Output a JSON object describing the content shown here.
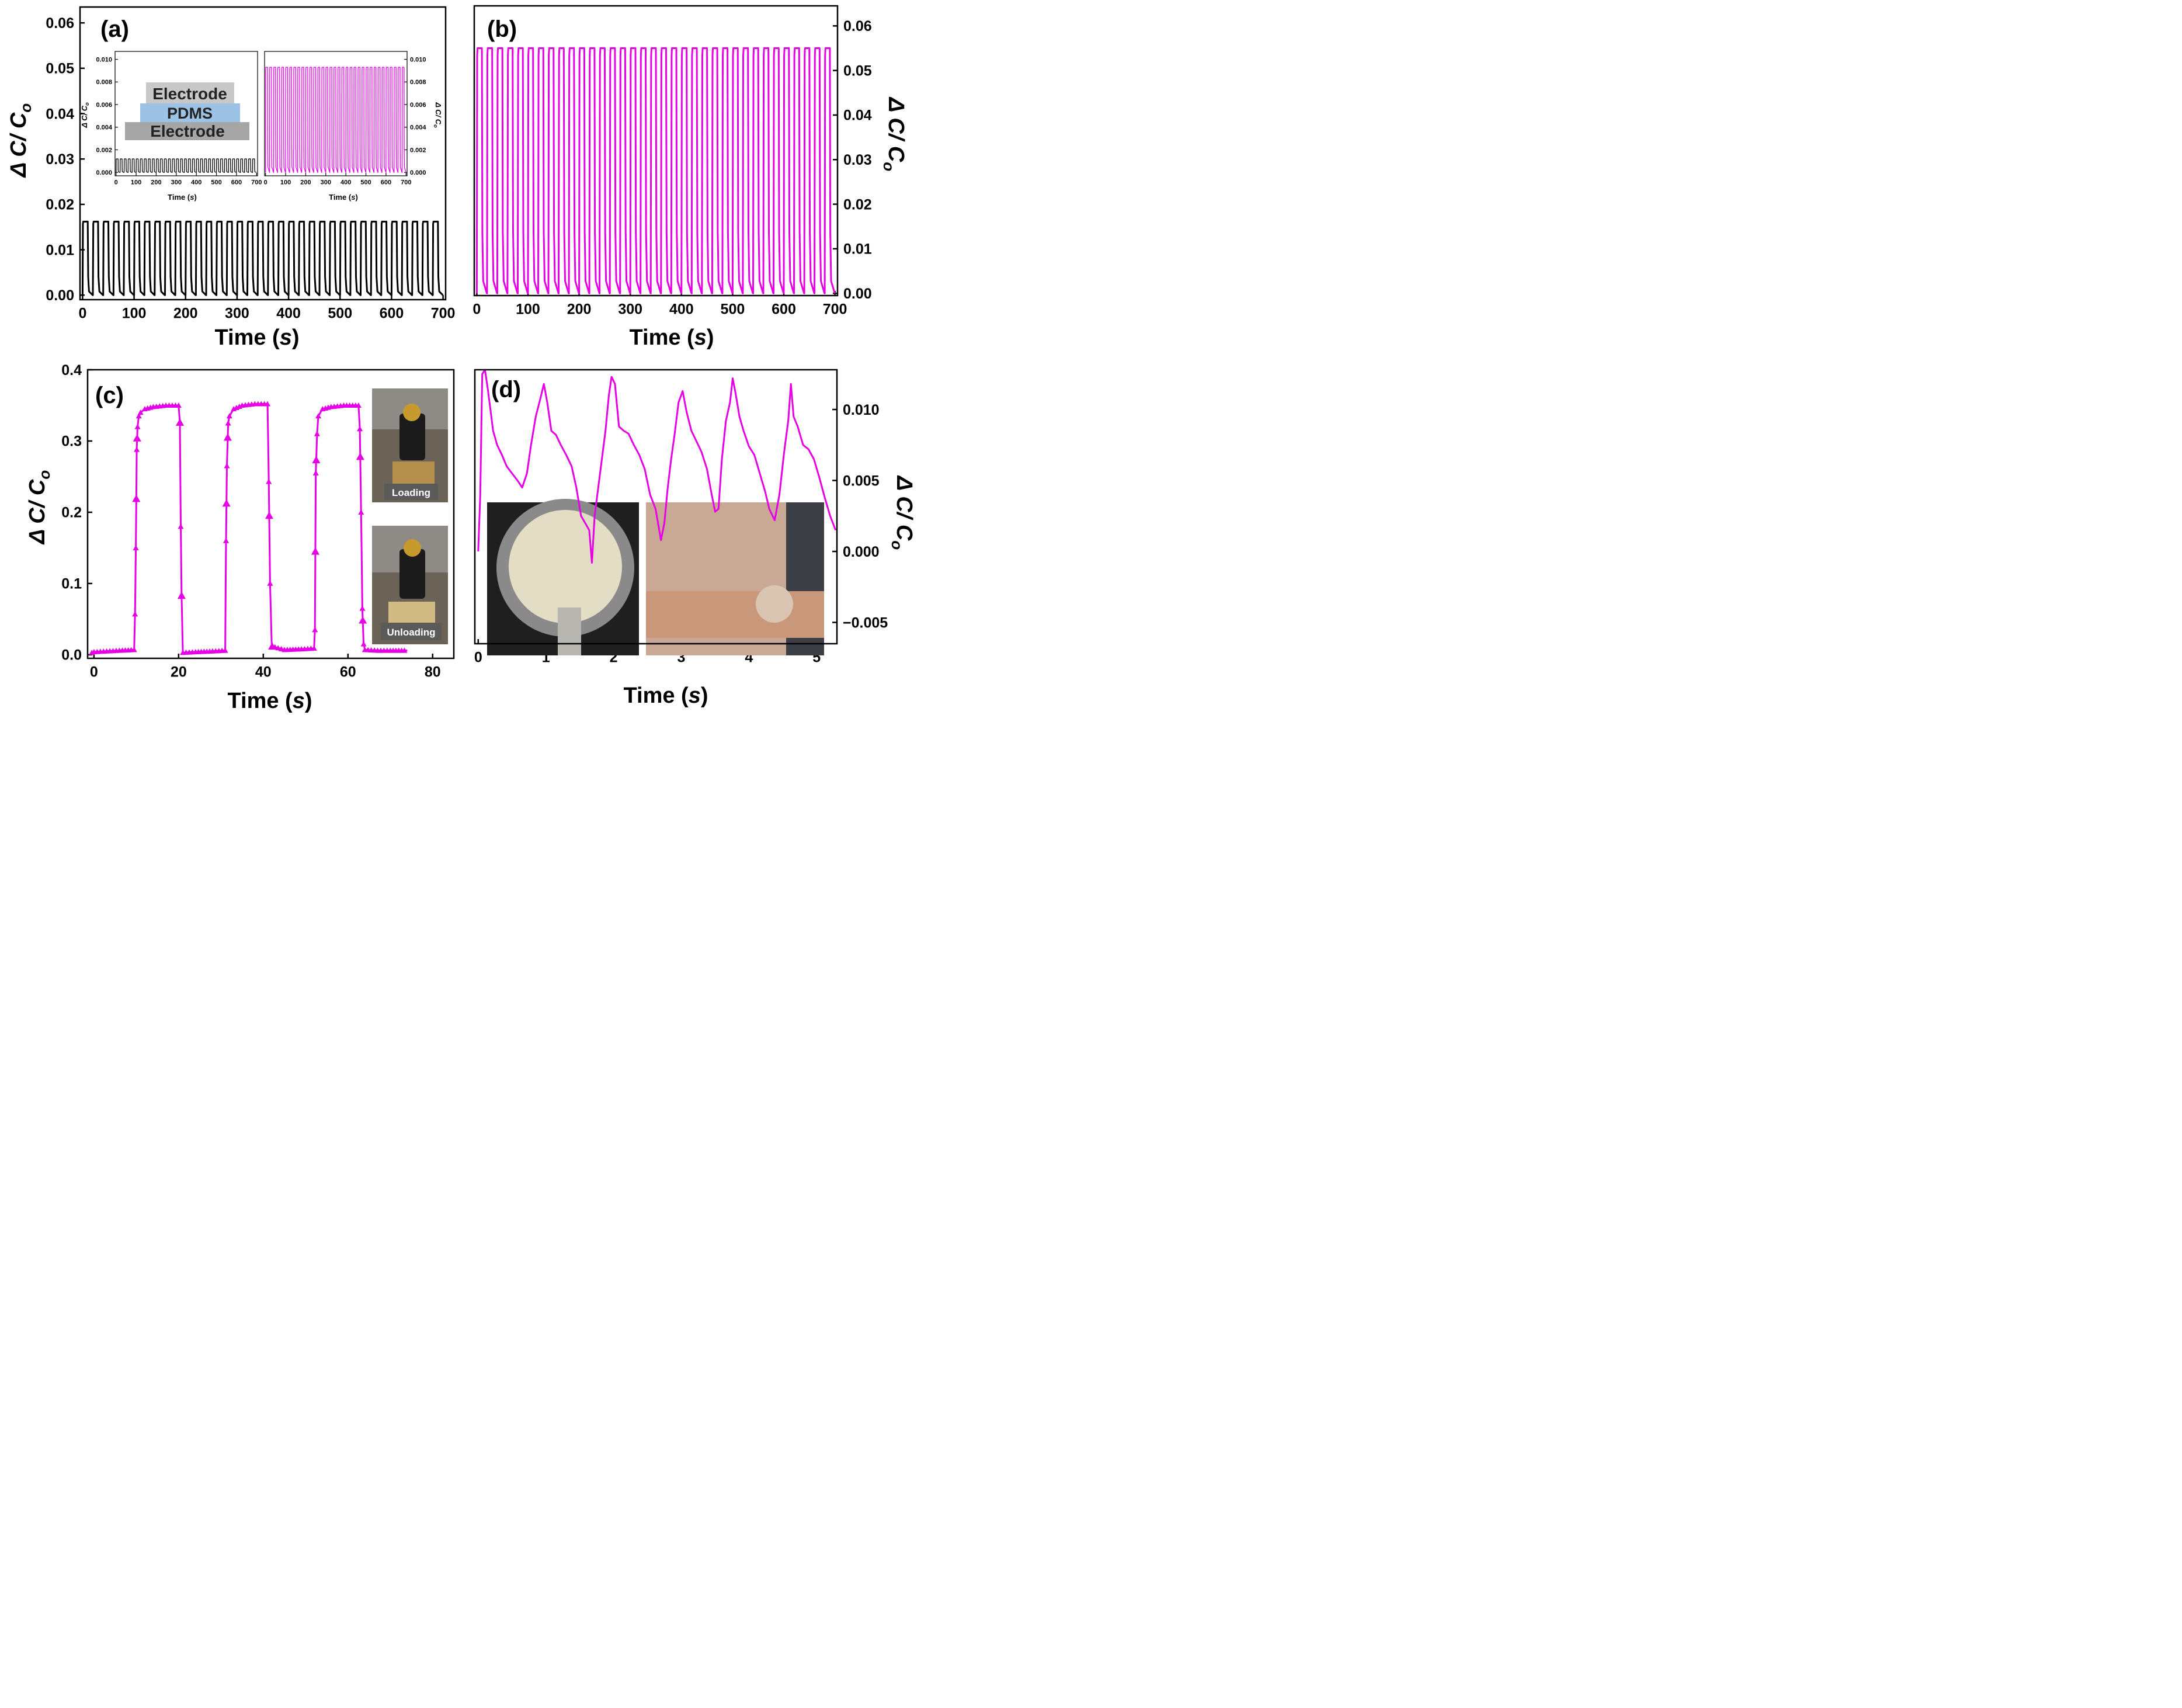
{
  "figure": {
    "panel_labels": {
      "a": "(a)",
      "b": "(b)",
      "c": "(c)",
      "d": "(d)"
    },
    "schematic": {
      "top_layer": "Electrode",
      "middle_layer": "PDMS",
      "bottom_layer": "Electrode"
    },
    "photo_labels": {
      "loading": "Loading",
      "unloading": "Unloading"
    },
    "photo_names": {
      "c_top": "minifigure-on-sensor-loading-photo",
      "c_bottom": "minifigure-on-sensor-unloading-photo",
      "d_left": "circular-sensor-photo",
      "d_right": "sensor-on-wrist-photo"
    }
  },
  "chart_data": [
    {
      "id": "a",
      "type": "line",
      "title": "",
      "xlabel": "Time",
      "xunit": "s",
      "ylabel": "Δ C/ C",
      "ylabel_sub": "o",
      "xlim": [
        -5,
        705
      ],
      "ylim": [
        -0.001,
        0.0635
      ],
      "xticks": [
        0,
        100,
        200,
        300,
        400,
        500,
        600,
        700
      ],
      "yticks": [
        0.0,
        0.01,
        0.02,
        0.03,
        0.04,
        0.05,
        0.06
      ],
      "ytick_decimals": 2,
      "axis_side": "left",
      "color": "#000000",
      "series": [
        {
          "name": "response",
          "kind": "square",
          "cycles": 35,
          "period": 20,
          "start": 0,
          "end": 705,
          "low": 0.0,
          "high": 0.0162,
          "rise": 0.7,
          "fall": 2.5
        }
      ]
    },
    {
      "id": "a_inset_1",
      "type": "line",
      "xlabel": "Time",
      "xunit": "s",
      "ylabel": "Δ C/ C",
      "ylabel_sub": "o",
      "xlim": [
        -5,
        705
      ],
      "ylim": [
        -0.0003,
        0.0107
      ],
      "xticks": [
        0,
        100,
        200,
        300,
        400,
        500,
        600,
        700
      ],
      "yticks": [
        0.0,
        0.002,
        0.004,
        0.006,
        0.008,
        0.01
      ],
      "ytick_decimals": 3,
      "axis_side": "left",
      "color": "#000000",
      "series": [
        {
          "name": "inset response",
          "kind": "square",
          "cycles": 35,
          "period": 20,
          "start": 0,
          "end": 705,
          "low": 0.0,
          "high": 0.0012,
          "rise": 0.6,
          "fall": 1.5
        }
      ]
    },
    {
      "id": "a_inset_2",
      "type": "line",
      "xlabel": "Time",
      "xunit": "s",
      "ylabel": "Δ C/ C",
      "ylabel_sub": "o",
      "xlim": [
        -5,
        705
      ],
      "ylim": [
        -0.0003,
        0.0107
      ],
      "xticks": [
        0,
        100,
        200,
        300,
        400,
        500,
        600,
        700
      ],
      "yticks": [
        0.0,
        0.002,
        0.004,
        0.006,
        0.008,
        0.01
      ],
      "ytick_decimals": 3,
      "axis_side": "right",
      "color": "#e600e6",
      "series": [
        {
          "name": "inset response",
          "kind": "square",
          "cycles": 35,
          "period": 20,
          "start": 0,
          "end": 705,
          "low": 0.0,
          "high": 0.0093,
          "rise": 0.6,
          "fall": 1.5
        }
      ]
    },
    {
      "id": "b",
      "type": "line",
      "xlabel": "Time",
      "xunit": "s",
      "ylabel": "Δ C/ C",
      "ylabel_sub": "o",
      "xlim": [
        -5,
        705
      ],
      "ylim": [
        -0.0005,
        0.0645
      ],
      "xticks": [
        0,
        100,
        200,
        300,
        400,
        500,
        600,
        700
      ],
      "yticks": [
        0.0,
        0.01,
        0.02,
        0.03,
        0.04,
        0.05,
        0.06
      ],
      "ytick_decimals": 2,
      "axis_side": "right",
      "color": "#e600e6",
      "series": [
        {
          "name": "response",
          "kind": "square",
          "cycles": 35,
          "period": 20,
          "start": 0,
          "end": 705,
          "low": 0.0,
          "high": 0.055,
          "rise": 0.7,
          "fall": 2.5
        }
      ]
    },
    {
      "id": "c",
      "type": "line",
      "xlabel": "Time",
      "xunit": "s",
      "ylabel": "Δ C/ C",
      "ylabel_sub": "o",
      "xlim": [
        -1.5,
        85
      ],
      "ylim": [
        -0.005,
        0.4
      ],
      "xticks": [
        0,
        20,
        40,
        60,
        80
      ],
      "yticks": [
        0.0,
        0.1,
        0.2,
        0.3,
        0.4
      ],
      "ytick_decimals": 1,
      "axis_side": "left",
      "color": "#e600e6",
      "marker": "triangle",
      "series": [
        {
          "name": "loading/unloading",
          "x": [
            -0.5,
            0,
            3,
            6,
            9.5,
            9.7,
            9.9,
            10.1,
            10.3,
            10.6,
            11,
            12,
            14,
            17,
            20,
            20.3,
            20.5,
            20.7,
            21,
            24,
            28,
            31,
            31.2,
            31.4,
            31.7,
            32,
            33,
            35,
            38,
            41,
            41.3,
            41.6,
            42,
            45,
            49,
            52,
            52.2,
            52.4,
            52.7,
            53,
            54,
            56,
            59,
            62.5,
            62.8,
            63.1,
            63.4,
            63.7,
            64,
            67,
            70,
            74
          ],
          "y": [
            0.003,
            0.004,
            0.005,
            0.006,
            0.007,
            0.057,
            0.15,
            0.288,
            0.32,
            0.335,
            0.34,
            0.345,
            0.348,
            0.35,
            0.35,
            0.326,
            0.18,
            0.083,
            0.003,
            0.004,
            0.005,
            0.006,
            0.16,
            0.265,
            0.325,
            0.335,
            0.345,
            0.35,
            0.352,
            0.352,
            0.243,
            0.1,
            0.012,
            0.007,
            0.008,
            0.009,
            0.035,
            0.255,
            0.31,
            0.335,
            0.345,
            0.348,
            0.35,
            0.35,
            0.317,
            0.2,
            0.065,
            0.015,
            0.007,
            0.006,
            0.006,
            0.006
          ],
          "markers_x": [
            10.0,
            10.2,
            20.3,
            20.7,
            31.3,
            31.6,
            41.4,
            42.1,
            52.3,
            52.5,
            62.9,
            63.5
          ]
        }
      ]
    },
    {
      "id": "d",
      "type": "line",
      "xlabel": "Time",
      "xunit": "s",
      "ylabel": "Δ C/ C",
      "ylabel_sub": "o",
      "xlim": [
        -0.05,
        5.3
      ],
      "ylim": [
        -0.0065,
        0.0128
      ],
      "xticks": [
        0,
        1,
        2,
        3,
        4,
        5
      ],
      "yticks": [
        -0.005,
        0.0,
        0.005,
        0.01
      ],
      "ytick_labels": [
        "−0.005",
        "0.000",
        "0.005",
        "0.010"
      ],
      "axis_side": "right",
      "color": "#e600e6",
      "series": [
        {
          "name": "pulse",
          "x": [
            0,
            0.03,
            0.06,
            0.1,
            0.14,
            0.18,
            0.22,
            0.28,
            0.35,
            0.42,
            0.5,
            0.58,
            0.65,
            0.72,
            0.78,
            0.85,
            0.92,
            0.97,
            1.02,
            1.08,
            1.15,
            1.22,
            1.3,
            1.38,
            1.45,
            1.52,
            1.58,
            1.64,
            1.68,
            1.72,
            1.8,
            1.88,
            1.93,
            1.97,
            2.02,
            2.08,
            2.15,
            2.22,
            2.3,
            2.38,
            2.46,
            2.54,
            2.62,
            2.7,
            2.75,
            2.8,
            2.85,
            2.9,
            2.96,
            3.02,
            3.08,
            3.15,
            3.22,
            3.3,
            3.38,
            3.45,
            3.5,
            3.55,
            3.6,
            3.66,
            3.72,
            3.76,
            3.8,
            3.86,
            3.92,
            4.0,
            4.08,
            4.16,
            4.24,
            4.3,
            4.38,
            4.45,
            4.52,
            4.58,
            4.62,
            4.66,
            4.72,
            4.8,
            4.88,
            4.96,
            5.04,
            5.12,
            5.2,
            5.28
          ],
          "y": [
            0.0,
            0.004,
            0.0125,
            0.0128,
            0.0115,
            0.01,
            0.0085,
            0.0075,
            0.0068,
            0.006,
            0.0055,
            0.005,
            0.0045,
            0.0055,
            0.0075,
            0.0095,
            0.0108,
            0.0118,
            0.0105,
            0.0085,
            0.0082,
            0.0075,
            0.0068,
            0.006,
            0.0045,
            0.0025,
            0.002,
            0.0015,
            -0.0008,
            0.0025,
            0.0055,
            0.0085,
            0.011,
            0.0123,
            0.0118,
            0.0088,
            0.0085,
            0.0083,
            0.0075,
            0.0068,
            0.0058,
            0.004,
            0.003,
            0.0008,
            0.002,
            0.0045,
            0.0065,
            0.0082,
            0.0105,
            0.0113,
            0.0098,
            0.0085,
            0.0078,
            0.007,
            0.0058,
            0.004,
            0.0028,
            0.003,
            0.0065,
            0.0092,
            0.0105,
            0.0122,
            0.0112,
            0.0095,
            0.0085,
            0.0074,
            0.0068,
            0.0055,
            0.0042,
            0.003,
            0.0022,
            0.004,
            0.007,
            0.0092,
            0.0118,
            0.0095,
            0.0088,
            0.0075,
            0.0072,
            0.0065,
            0.0052,
            0.0038,
            0.0025,
            0.0015
          ]
        }
      ]
    }
  ]
}
